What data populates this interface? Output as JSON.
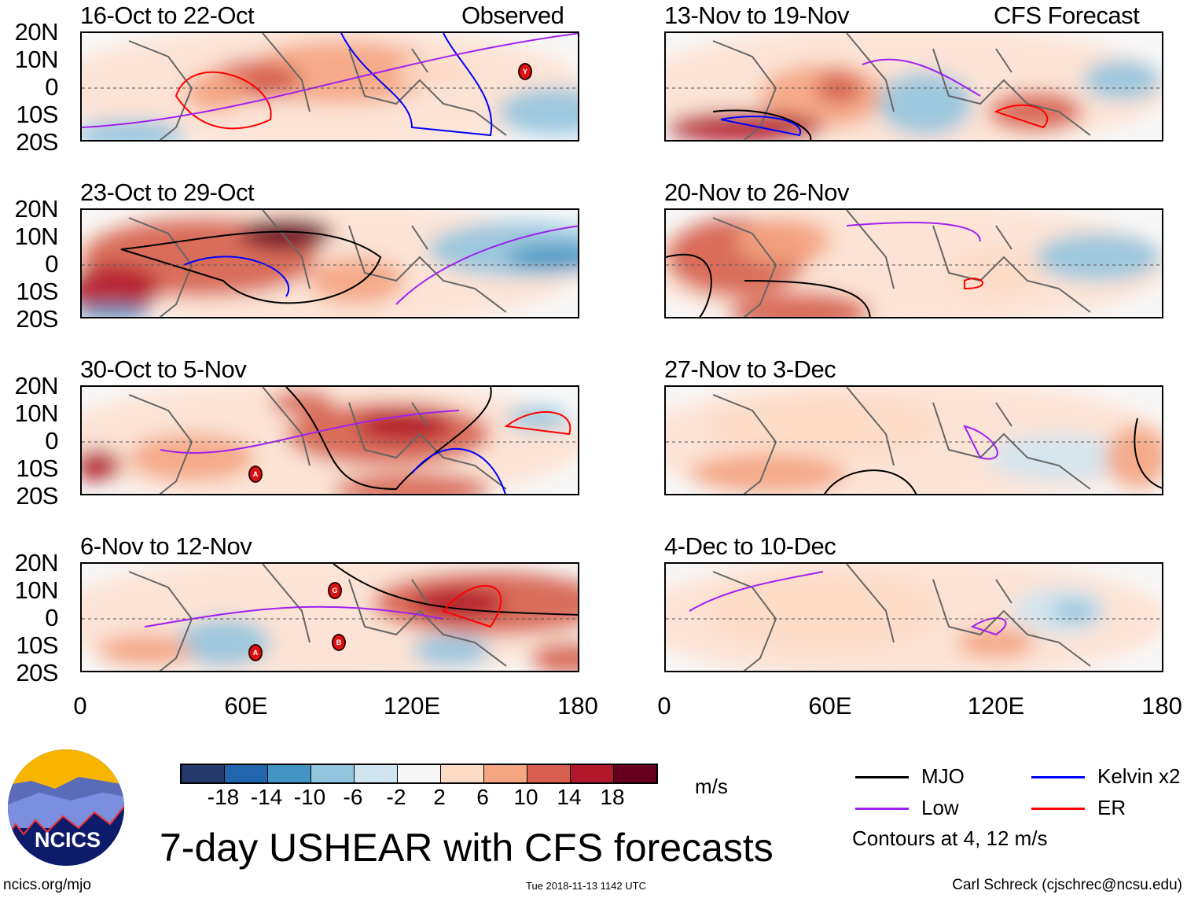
{
  "figure": {
    "title": "7-day USHEAR with CFS forecasts",
    "observed_label": "Observed",
    "forecast_label": "CFS Forecast",
    "units": "m/s",
    "url": "ncics.org/mjo",
    "timestamp": "Tue 2018-11-13 1142 UTC",
    "author": "Carl Schreck (cjschrec@ncsu.edu)",
    "logo_text": "NCICS"
  },
  "panels": [
    {
      "title": "16-Oct to 22-Oct",
      "column": "observed",
      "storms": [
        "Y"
      ]
    },
    {
      "title": "23-Oct to 29-Oct",
      "column": "observed",
      "storms": []
    },
    {
      "title": "30-Oct to 5-Nov",
      "column": "observed",
      "storms": [
        "A"
      ]
    },
    {
      "title": "6-Nov to 12-Nov",
      "column": "observed",
      "storms": [
        "G",
        "A",
        "B"
      ]
    },
    {
      "title": "13-Nov to 19-Nov",
      "column": "forecast",
      "storms": []
    },
    {
      "title": "20-Nov to 26-Nov",
      "column": "forecast",
      "storms": []
    },
    {
      "title": "27-Nov to 3-Dec",
      "column": "forecast",
      "storms": []
    },
    {
      "title": "4-Dec to 10-Dec",
      "column": "forecast",
      "storms": []
    }
  ],
  "axes": {
    "lat_labels": [
      "20N",
      "10N",
      "0",
      "10S",
      "20S"
    ],
    "lon_labels": [
      "0",
      "60E",
      "120E",
      "180"
    ]
  },
  "colorbar": {
    "labels": [
      "-18",
      "-14",
      "-10",
      "-6",
      "-2",
      "2",
      "6",
      "10",
      "14",
      "18"
    ],
    "colors": [
      "#253a6b",
      "#2166ac",
      "#4393c3",
      "#92c5de",
      "#d1e5f0",
      "#f7f7f7",
      "#fddbc7",
      "#f4a582",
      "#d6604d",
      "#b2182b",
      "#67001f"
    ]
  },
  "legend": {
    "items": [
      {
        "label": "MJO",
        "color": "#000000"
      },
      {
        "label": "Kelvin x2",
        "color": "#0000ff"
      },
      {
        "label": "Low",
        "color": "#a020f0"
      },
      {
        "label": "ER",
        "color": "#ff0000"
      }
    ],
    "note": "Contours at 4, 12 m/s"
  }
}
